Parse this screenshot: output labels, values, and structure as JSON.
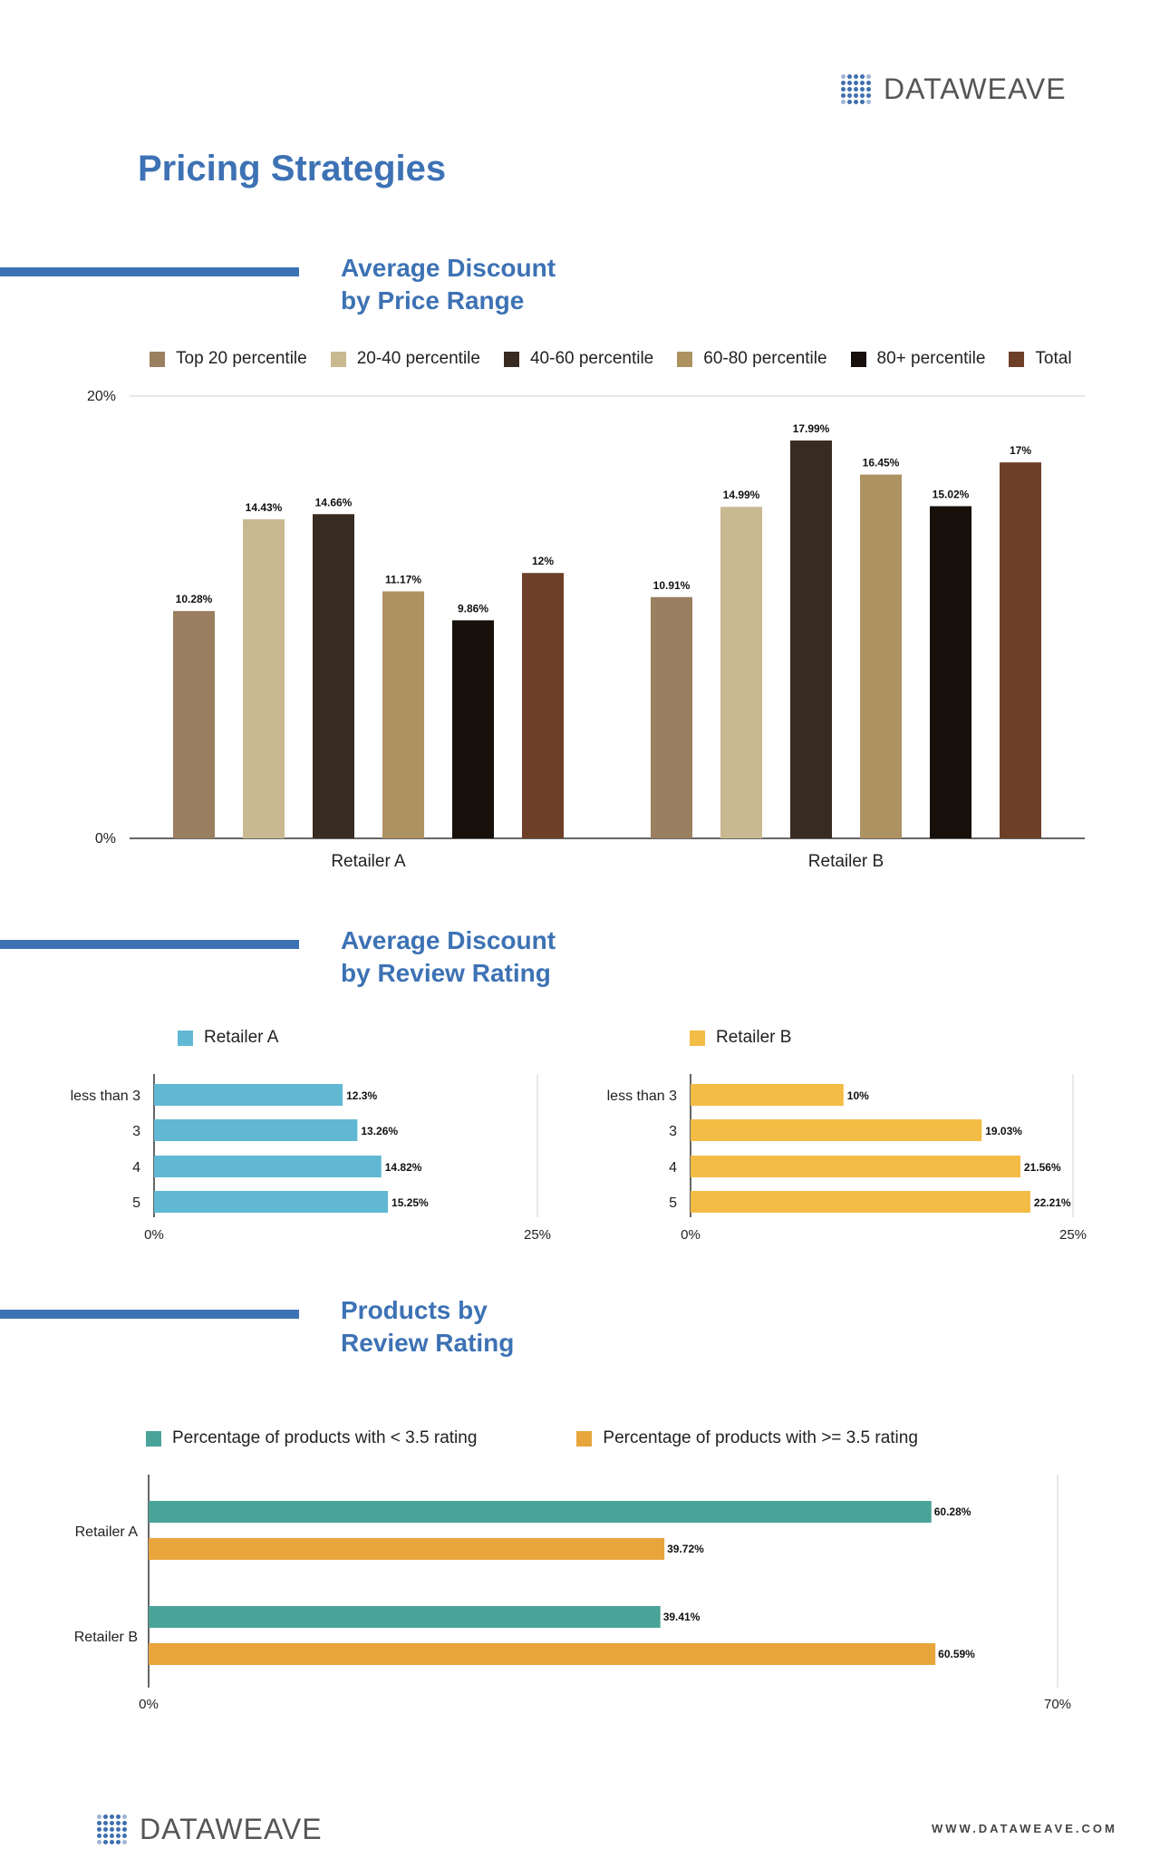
{
  "brand": {
    "name": "DATAWEAVE",
    "url": "WWW.DATAWEAVE.COM"
  },
  "page_title": "Pricing Strategies",
  "colors": {
    "accent": "#3d72b4",
    "top20": "#9b7f61",
    "p20_40": "#c8b991",
    "p40_60": "#382b22",
    "p60_80": "#ad9262",
    "p80plus": "#17100a",
    "total": "#6d3f28",
    "retailer_a": "#60b8d2",
    "retailer_b": "#f2bc45",
    "below_3_5": "#4aa398",
    "above_3_5": "#e7a53c"
  },
  "sections": {
    "price_range": {
      "title_line1": "Average Discount",
      "title_line2": "by Price Range"
    },
    "review_rating": {
      "title_line1": "Average Discount",
      "title_line2": "by Review Rating"
    },
    "products": {
      "title_line1": "Products by",
      "title_line2": "Review Rating"
    }
  },
  "chart_data": [
    {
      "type": "bar",
      "categories": [
        "Retailer A",
        "Retailer B"
      ],
      "series": [
        {
          "name": "Top 20 percentile",
          "values": [
            10.28,
            10.91
          ],
          "labels": [
            "10.28%",
            "10.91%"
          ],
          "color": "#9b7f61"
        },
        {
          "name": "20-40 percentile",
          "values": [
            14.43,
            14.99
          ],
          "labels": [
            "14.43%",
            "14.99%"
          ],
          "color": "#c8b991"
        },
        {
          "name": "40-60 percentile",
          "values": [
            14.66,
            17.99
          ],
          "labels": [
            "14.66%",
            "17.99%"
          ],
          "color": "#382b22"
        },
        {
          "name": "60-80 percentile",
          "values": [
            11.17,
            16.45
          ],
          "labels": [
            "11.17%",
            "16.45%"
          ],
          "color": "#ad9262"
        },
        {
          "name": "80+ percentile",
          "values": [
            9.86,
            15.02
          ],
          "labels": [
            "9.86%",
            "15.02%"
          ],
          "color": "#17100a"
        },
        {
          "name": "Total",
          "values": [
            12,
            17
          ],
          "labels": [
            "12%",
            "17%"
          ],
          "color": "#6d3f28"
        }
      ],
      "ylim": [
        0,
        20
      ],
      "yticks": [
        "0%",
        "20%"
      ],
      "grid": true,
      "legend": "top"
    },
    {
      "type": "bar",
      "orientation": "horizontal",
      "categories": [
        "less than 3",
        "3",
        "4",
        "5"
      ],
      "series": [
        {
          "name": "Retailer A",
          "values": [
            12.3,
            13.26,
            14.82,
            15.25
          ],
          "labels": [
            "12.3%",
            "13.26%",
            "14.82%",
            "15.25%"
          ],
          "color": "#60b8d2"
        }
      ],
      "xlim": [
        0,
        25
      ],
      "xticks": [
        "0%",
        "25%"
      ],
      "legend": "top"
    },
    {
      "type": "bar",
      "orientation": "horizontal",
      "categories": [
        "less than 3",
        "3",
        "4",
        "5"
      ],
      "series": [
        {
          "name": "Retailer B",
          "values": [
            10,
            19.03,
            21.56,
            22.21
          ],
          "labels": [
            "10%",
            "19.03%",
            "21.56%",
            "22.21%"
          ],
          "color": "#f2bc45"
        }
      ],
      "xlim": [
        0,
        25
      ],
      "xticks": [
        "0%",
        "25%"
      ],
      "legend": "top"
    },
    {
      "type": "bar",
      "orientation": "horizontal",
      "categories": [
        "Retailer A",
        "Retailer B"
      ],
      "series": [
        {
          "name": "Percentage of products with < 3.5 rating",
          "values": [
            60.28,
            39.41
          ],
          "labels": [
            "60.28%",
            "39.41%"
          ],
          "color": "#4aa398"
        },
        {
          "name": "Percentage of products with >= 3.5 rating",
          "values": [
            39.72,
            60.59
          ],
          "labels": [
            "39.72%",
            "60.59%"
          ],
          "color": "#e7a53c"
        }
      ],
      "xlim": [
        0,
        70
      ],
      "xticks": [
        "0%",
        "70%"
      ],
      "legend": "top"
    }
  ]
}
